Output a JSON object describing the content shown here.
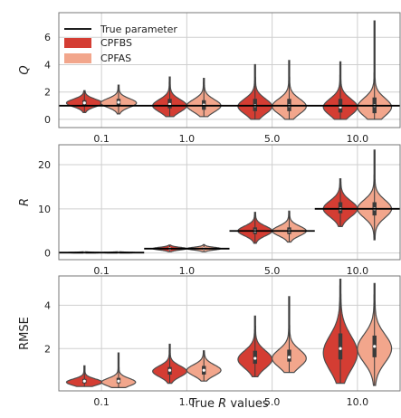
{
  "colors": {
    "cpfbs": "#d43d33",
    "cpfas": "#f2a68c",
    "true_line": "#000000",
    "grid": "#cfcfcf",
    "frame": "#777777",
    "violin_edge": "#4d4d4d",
    "box": "#3a3a3a",
    "median": "#ffffff"
  },
  "xlabel": {
    "pre": "True ",
    "var": "R",
    "post": " values"
  },
  "chart_data": [
    {
      "type": "violin",
      "ylabel": "Q",
      "ylabel_italic": true,
      "ylim": [
        -0.6,
        7.8
      ],
      "yticks": [
        "0",
        "2",
        "4",
        "6"
      ],
      "categories": [
        "0.1",
        "1.0",
        "5.0",
        "10.0"
      ],
      "legend": {
        "position": "top-left",
        "entries": [
          "True parameter",
          "CPFBS",
          "CPFAS"
        ]
      },
      "true_values": [
        1.0,
        1.0,
        1.0,
        1.0
      ],
      "series": [
        {
          "name": "CPFBS",
          "stats": [
            {
              "min": 0.5,
              "max": 2.1,
              "q1": 1.05,
              "med": 1.2,
              "q3": 1.4,
              "width": 0.42,
              "mode": 1.2,
              "spread": 0.28
            },
            {
              "min": 0.2,
              "max": 3.1,
              "q1": 0.8,
              "med": 1.1,
              "q3": 1.5,
              "width": 0.4,
              "mode": 1.0,
              "spread": 0.45
            },
            {
              "min": 0.0,
              "max": 4.0,
              "q1": 0.6,
              "med": 1.0,
              "q3": 1.5,
              "width": 0.4,
              "mode": 0.95,
              "spread": 0.55
            },
            {
              "min": 0.0,
              "max": 4.2,
              "q1": 0.5,
              "med": 0.9,
              "q3": 1.5,
              "width": 0.4,
              "mode": 0.9,
              "spread": 0.6
            }
          ]
        },
        {
          "name": "CPFAS",
          "stats": [
            {
              "min": 0.4,
              "max": 2.5,
              "q1": 1.0,
              "med": 1.25,
              "q3": 1.5,
              "width": 0.42,
              "mode": 1.2,
              "spread": 0.32
            },
            {
              "min": 0.2,
              "max": 3.0,
              "q1": 0.7,
              "med": 1.05,
              "q3": 1.4,
              "width": 0.4,
              "mode": 1.0,
              "spread": 0.45
            },
            {
              "min": 0.0,
              "max": 4.3,
              "q1": 0.6,
              "med": 1.0,
              "q3": 1.5,
              "width": 0.4,
              "mode": 0.95,
              "spread": 0.55
            },
            {
              "min": 0.0,
              "max": 7.2,
              "q1": 0.45,
              "med": 1.0,
              "q3": 1.6,
              "width": 0.4,
              "mode": 0.9,
              "spread": 0.65
            }
          ]
        }
      ]
    },
    {
      "type": "violin",
      "ylabel": "R",
      "ylabel_italic": true,
      "ylim": [
        -1.5,
        24.5
      ],
      "yticks": [
        "0",
        "10",
        "20"
      ],
      "categories": [
        "0.1",
        "1.0",
        "5.0",
        "10.0"
      ],
      "true_values": [
        0.1,
        1.0,
        5.0,
        10.0
      ],
      "series": [
        {
          "name": "CPFBS",
          "stats": [
            {
              "min": 0.0,
              "max": 0.3,
              "q1": 0.05,
              "med": 0.1,
              "q3": 0.15,
              "width": 0.4,
              "mode": 0.1,
              "spread": 0.08
            },
            {
              "min": 0.3,
              "max": 1.8,
              "q1": 0.8,
              "med": 1.0,
              "q3": 1.2,
              "width": 0.4,
              "mode": 1.0,
              "spread": 0.3
            },
            {
              "min": 2.2,
              "max": 9.2,
              "q1": 4.3,
              "med": 5.0,
              "q3": 5.8,
              "width": 0.4,
              "mode": 5.0,
              "spread": 1.1
            },
            {
              "min": 6.0,
              "max": 16.8,
              "q1": 9.0,
              "med": 10.0,
              "q3": 11.5,
              "width": 0.4,
              "mode": 10.0,
              "spread": 1.8
            }
          ]
        },
        {
          "name": "CPFAS",
          "stats": [
            {
              "min": 0.0,
              "max": 0.3,
              "q1": 0.05,
              "med": 0.1,
              "q3": 0.15,
              "width": 0.4,
              "mode": 0.1,
              "spread": 0.08
            },
            {
              "min": 0.3,
              "max": 1.9,
              "q1": 0.8,
              "med": 1.0,
              "q3": 1.2,
              "width": 0.4,
              "mode": 1.0,
              "spread": 0.3
            },
            {
              "min": 2.5,
              "max": 9.5,
              "q1": 4.3,
              "med": 5.0,
              "q3": 5.8,
              "width": 0.4,
              "mode": 5.0,
              "spread": 1.1
            },
            {
              "min": 3.0,
              "max": 23.3,
              "q1": 8.5,
              "med": 10.0,
              "q3": 11.5,
              "width": 0.4,
              "mode": 10.0,
              "spread": 2.0
            }
          ]
        }
      ]
    },
    {
      "type": "violin",
      "ylabel": "RMSE",
      "ylabel_italic": false,
      "ylim": [
        0.05,
        5.35
      ],
      "yticks": [
        "2",
        "4"
      ],
      "categories": [
        "0.1",
        "1.0",
        "5.0",
        "10.0"
      ],
      "series": [
        {
          "name": "CPFBS",
          "stats": [
            {
              "min": 0.25,
              "max": 1.2,
              "q1": 0.4,
              "med": 0.5,
              "q3": 0.6,
              "width": 0.42,
              "mode": 0.45,
              "spread": 0.15
            },
            {
              "min": 0.4,
              "max": 2.2,
              "q1": 0.8,
              "med": 1.0,
              "q3": 1.15,
              "width": 0.4,
              "mode": 0.95,
              "spread": 0.25
            },
            {
              "min": 0.7,
              "max": 3.5,
              "q1": 1.3,
              "med": 1.55,
              "q3": 1.9,
              "width": 0.4,
              "mode": 1.5,
              "spread": 0.4
            },
            {
              "min": 0.4,
              "max": 5.2,
              "q1": 1.5,
              "med": 2.0,
              "q3": 2.7,
              "width": 0.4,
              "mode": 1.8,
              "spread": 0.8
            }
          ]
        },
        {
          "name": "CPFAS",
          "stats": [
            {
              "min": 0.2,
              "max": 1.8,
              "q1": 0.4,
              "med": 0.5,
              "q3": 0.65,
              "width": 0.4,
              "mode": 0.45,
              "spread": 0.18
            },
            {
              "min": 0.5,
              "max": 1.9,
              "q1": 0.8,
              "med": 1.0,
              "q3": 1.2,
              "width": 0.4,
              "mode": 1.0,
              "spread": 0.25
            },
            {
              "min": 0.9,
              "max": 4.4,
              "q1": 1.4,
              "med": 1.6,
              "q3": 1.95,
              "width": 0.4,
              "mode": 1.55,
              "spread": 0.4
            },
            {
              "min": 0.3,
              "max": 5.0,
              "q1": 1.6,
              "med": 2.1,
              "q3": 2.6,
              "width": 0.4,
              "mode": 2.0,
              "spread": 0.65
            }
          ]
        }
      ]
    }
  ]
}
